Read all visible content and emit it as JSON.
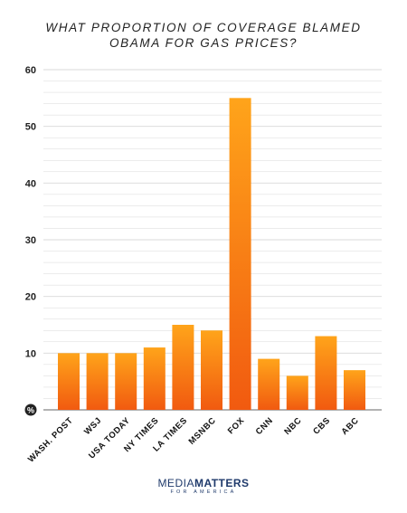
{
  "chart_data": {
    "type": "bar",
    "title_lines": [
      "WHAT PROPORTION OF COVERAGE BLAMED",
      "OBAMA FOR GAS PRICES?"
    ],
    "categories": [
      "WASH. POST",
      "WSJ",
      "USA TODAY",
      "NY TIMES",
      "LA TIMES",
      "MSNBC",
      "FOX",
      "CNN",
      "NBC",
      "CBS",
      "ABC"
    ],
    "values": [
      10,
      10,
      10,
      11,
      15,
      14,
      55,
      9,
      6,
      13,
      7
    ],
    "ylim": [
      0,
      60
    ],
    "yticks": [
      "10",
      "20",
      "30",
      "40",
      "50",
      "60"
    ],
    "zero_label": "%",
    "grid": true,
    "colors": {
      "bar_top": "#ffa41a",
      "bar_bottom": "#f15a10",
      "grid": "#d8d8d8",
      "axis": "#666666"
    }
  },
  "logo": {
    "media": "MEDIA",
    "matters": "MATTERS",
    "sub": "FOR AMERICA"
  }
}
